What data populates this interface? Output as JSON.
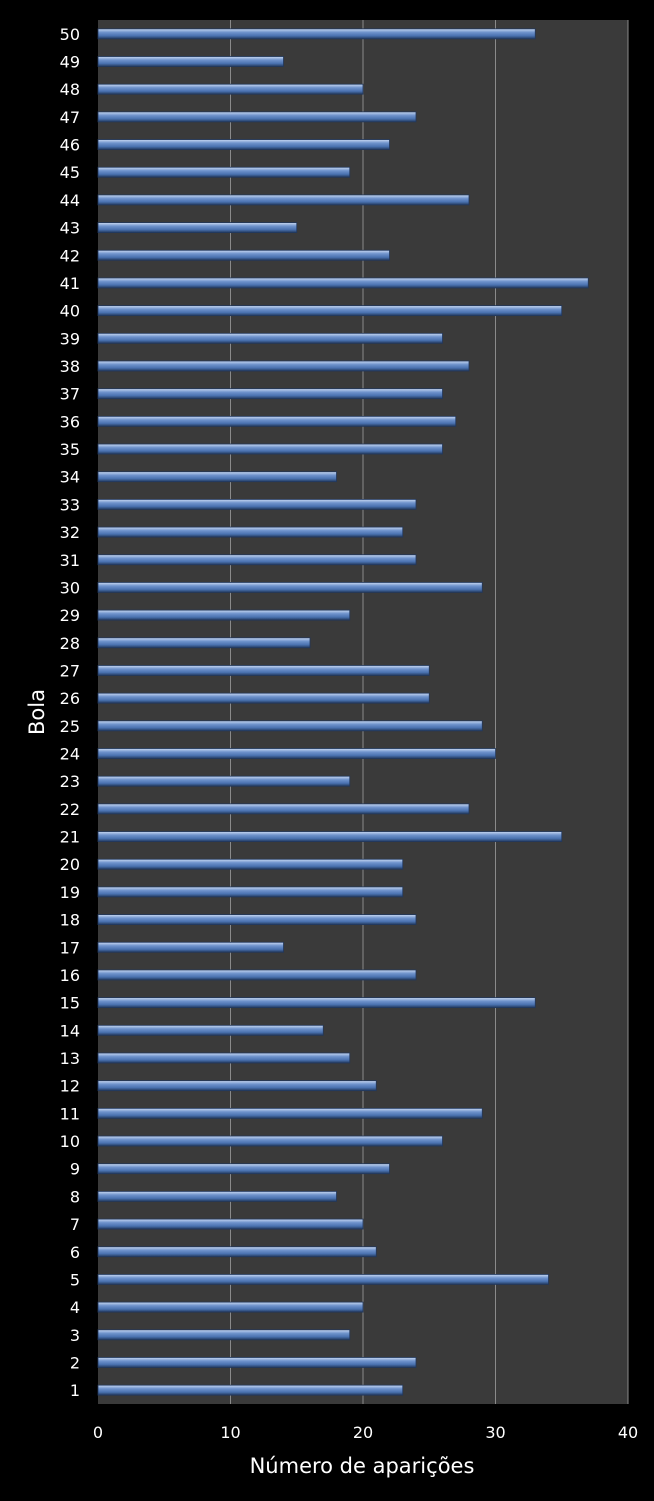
{
  "chart_data": {
    "type": "bar",
    "orientation": "horizontal",
    "xlabel": "Número de aparições",
    "ylabel": "Bola",
    "xlim": [
      0,
      40
    ],
    "xticks": [
      0,
      10,
      20,
      30,
      40
    ],
    "grid": "vertical",
    "legend": "none",
    "colors": {
      "background": "#000000",
      "plot_area": "#3a3a3a",
      "gridline": "#8a8a8a",
      "bar": "#4a72b0",
      "bar_highlight": "#a9c1e6",
      "bar_shadow": "#22385c",
      "text": "#ffffff"
    },
    "categories": [
      "1",
      "2",
      "3",
      "4",
      "5",
      "6",
      "7",
      "8",
      "9",
      "10",
      "11",
      "12",
      "13",
      "14",
      "15",
      "16",
      "17",
      "18",
      "19",
      "20",
      "21",
      "22",
      "23",
      "24",
      "25",
      "26",
      "27",
      "28",
      "29",
      "30",
      "31",
      "32",
      "33",
      "34",
      "35",
      "36",
      "37",
      "38",
      "39",
      "40",
      "41",
      "42",
      "43",
      "44",
      "45",
      "46",
      "47",
      "48",
      "49",
      "50"
    ],
    "values": [
      23,
      24,
      19,
      20,
      34,
      21,
      20,
      18,
      22,
      26,
      29,
      21,
      19,
      17,
      33,
      24,
      14,
      24,
      23,
      23,
      35,
      28,
      19,
      30,
      29,
      25,
      25,
      16,
      19,
      29,
      24,
      23,
      24,
      18,
      26,
      27,
      26,
      28,
      26,
      35,
      37,
      22,
      15,
      28,
      19,
      22,
      24,
      20,
      14,
      33
    ]
  }
}
